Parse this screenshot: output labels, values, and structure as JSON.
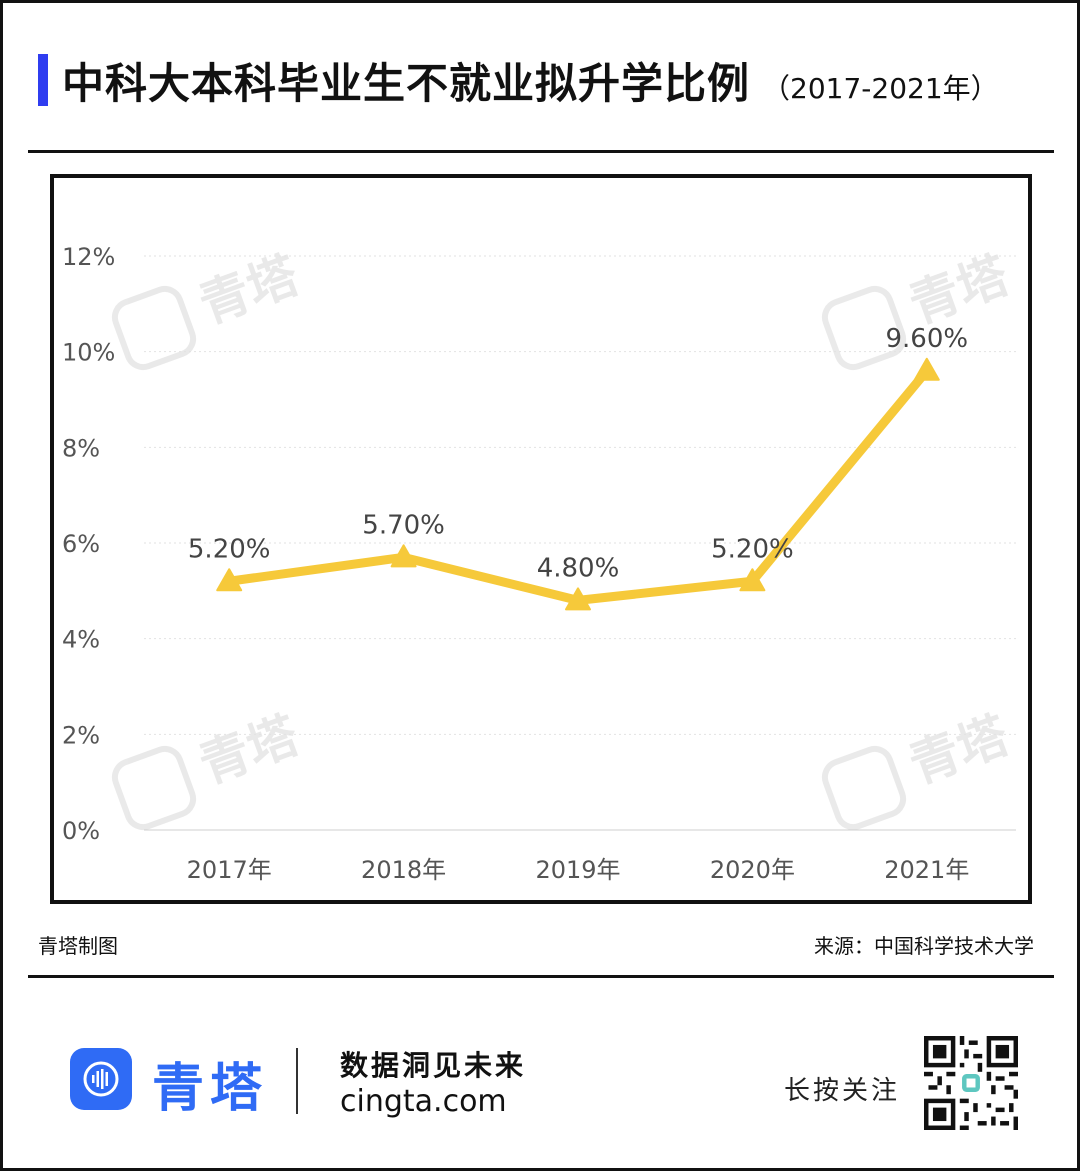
{
  "header": {
    "title": "中科大本科毕业生不就业拟升学比例",
    "subtitle": "（2017-2021年）"
  },
  "chart_data": {
    "type": "line",
    "categories": [
      "2017年",
      "2018年",
      "2019年",
      "2020年",
      "2021年"
    ],
    "values": [
      5.2,
      5.7,
      4.8,
      5.2,
      9.6
    ],
    "data_labels": [
      "5.20%",
      "5.70%",
      "4.80%",
      "5.20%",
      "9.60%"
    ],
    "y_ticks": [
      0,
      2,
      4,
      6,
      8,
      10,
      12
    ],
    "y_tick_labels": [
      "0%",
      "2%",
      "4%",
      "6%",
      "8%",
      "10%",
      "12%"
    ],
    "ylim": [
      0,
      12
    ],
    "grid": true,
    "marker": "triangle",
    "line_color": "#f6c93a"
  },
  "watermark": {
    "text": "青塔"
  },
  "footer": {
    "left_note": "青塔制图",
    "source": "来源：中国科学技术大学",
    "brand_name": "青塔",
    "slogan": "数据洞见未来",
    "site": "cingta.com",
    "follow": "长按关注"
  },
  "colors": {
    "accent": "#2f3df0",
    "brand": "#2f6bf5",
    "line": "#f6c93a"
  }
}
